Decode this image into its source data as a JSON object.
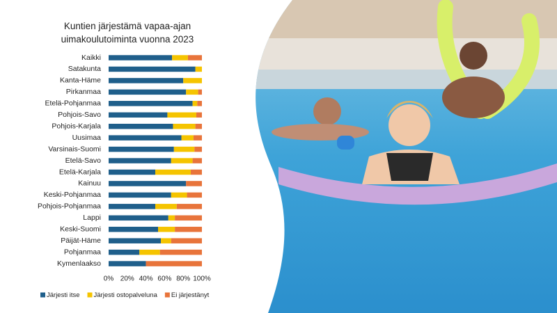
{
  "chart_data": {
    "type": "bar",
    "orientation": "horizontal",
    "stacked": true,
    "title": "Kuntien järjestämä vapaa-ajan uimakoulutoiminta vuonna 2023",
    "categories": [
      "Kaikki",
      "Satakunta",
      "Kanta-Häme",
      "Pirkanmaa",
      "Etelä-Pohjanmaa",
      "Pohjois-Savo",
      "Pohjois-Karjala",
      "Uusimaa",
      "Varsinais-Suomi",
      "Etelä-Savo",
      "Etelä-Karjala",
      "Kainuu",
      "Keski-Pohjanmaa",
      "Pohjois-Pohjanmaa",
      "Lappi",
      "Keski-Suomi",
      "Päijät-Häme",
      "Pohjanmaa",
      "Kymenlaakso"
    ],
    "series": [
      {
        "name": "Järjesti itse",
        "color": "#1f5f8b",
        "values": [
          68,
          93,
          80,
          83,
          90,
          63,
          69,
          78,
          70,
          67,
          50,
          83,
          67,
          50,
          64,
          53,
          56,
          33,
          40
        ]
      },
      {
        "name": "Järjesti ostopalveluna",
        "color": "#f5c400",
        "values": [
          17,
          7,
          20,
          13,
          5,
          31,
          24,
          13,
          22,
          23,
          38,
          0,
          17,
          23,
          7,
          18,
          11,
          22,
          0
        ]
      },
      {
        "name": "Ei järjestänyt",
        "color": "#e8743b",
        "values": [
          15,
          0,
          0,
          4,
          5,
          6,
          7,
          9,
          8,
          10,
          12,
          17,
          16,
          27,
          29,
          29,
          33,
          45,
          60
        ]
      }
    ],
    "xlim": [
      0,
      100
    ],
    "xticks": [
      {
        "value": 0,
        "label": "0%"
      },
      {
        "value": 20,
        "label": "20%"
      },
      {
        "value": 40,
        "label": "40%"
      },
      {
        "value": 60,
        "label": "60%"
      },
      {
        "value": 80,
        "label": "80%"
      },
      {
        "value": 100,
        "label": "100%"
      }
    ],
    "legend": "bottom"
  }
}
